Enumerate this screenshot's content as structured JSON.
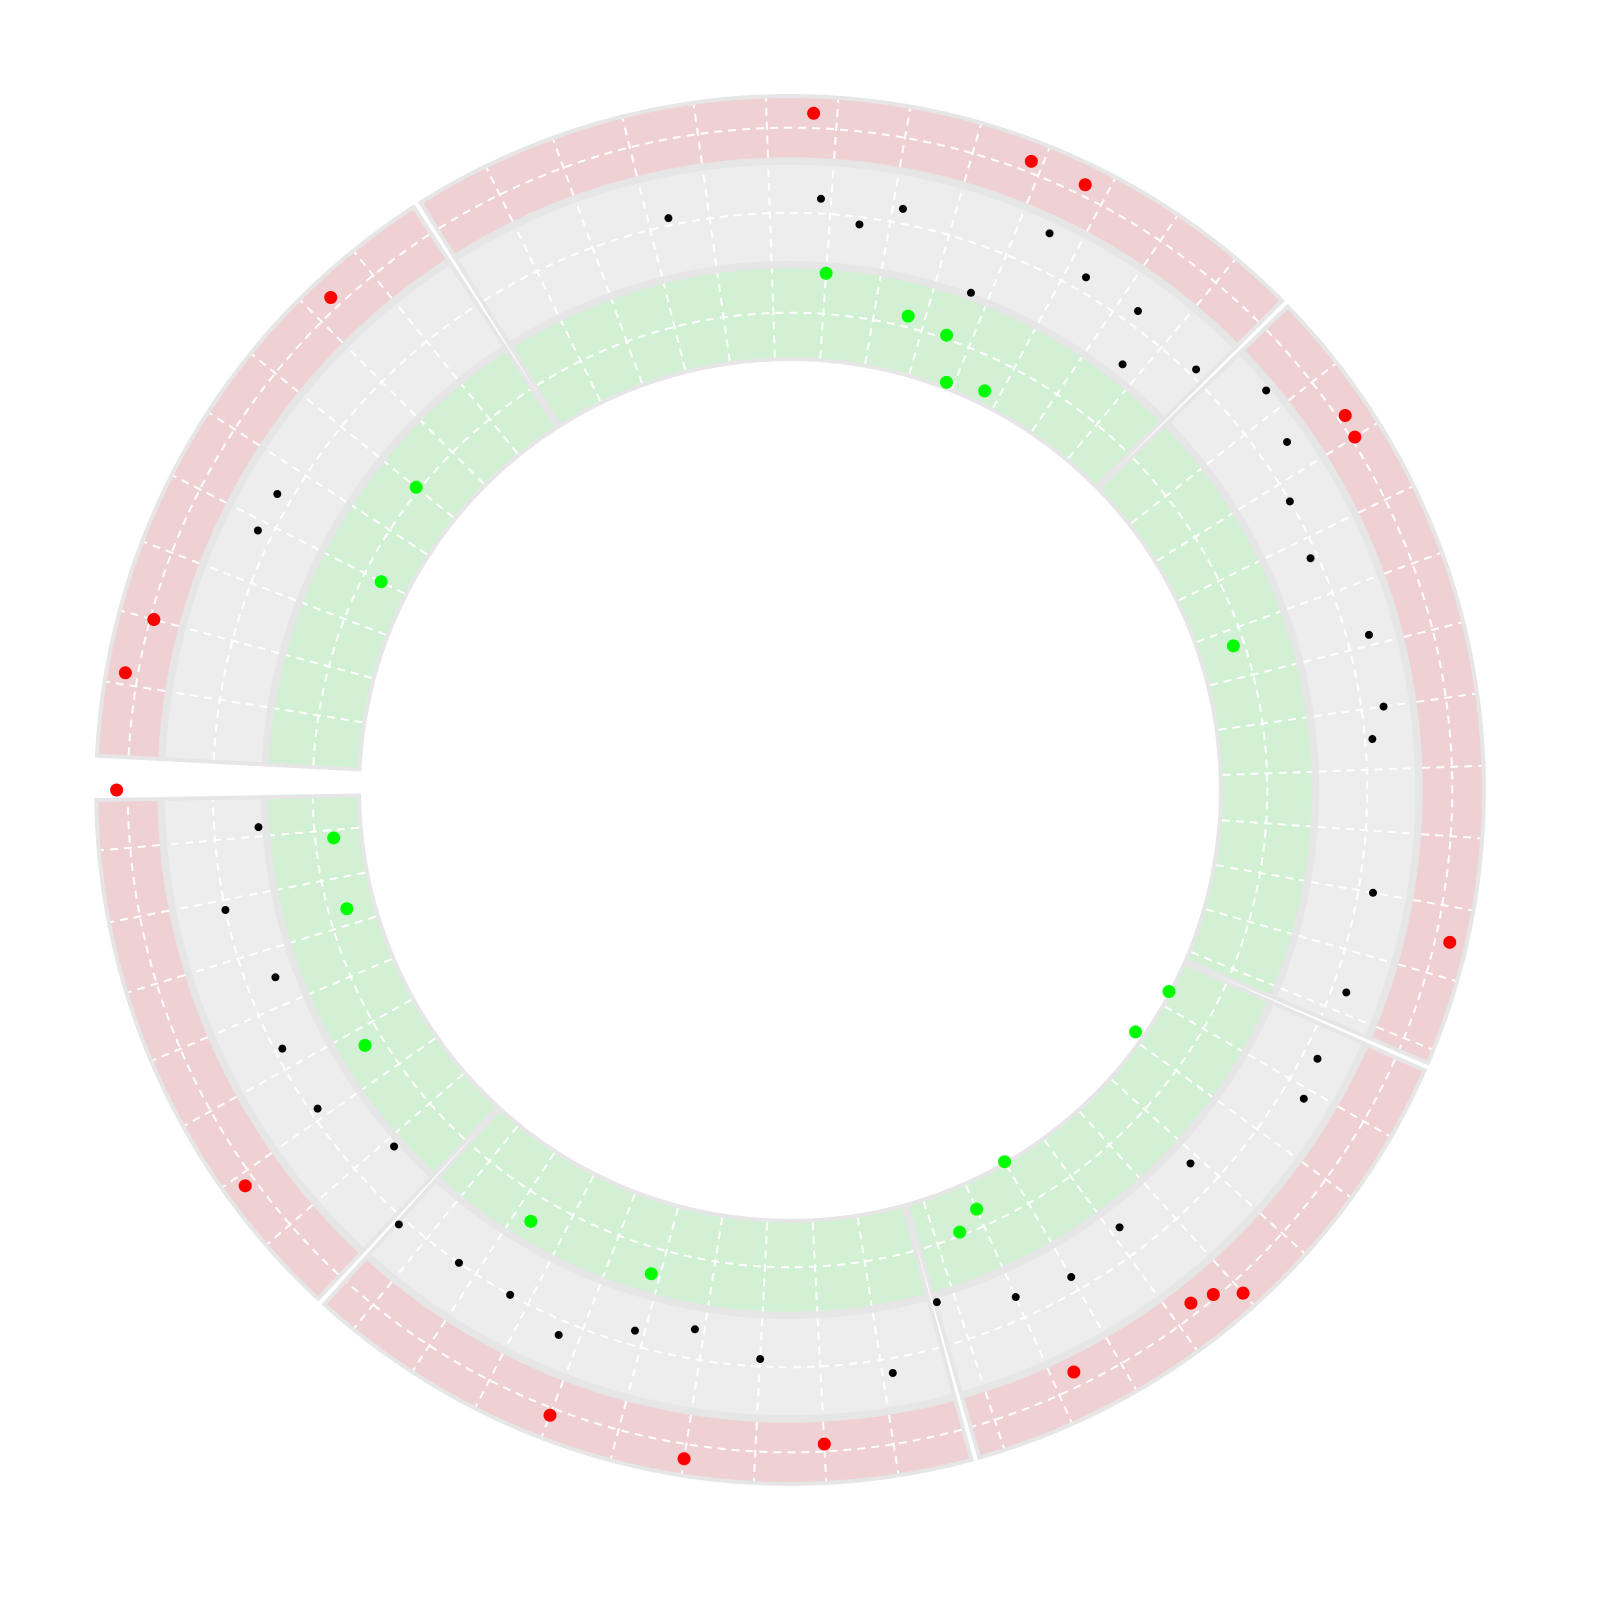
{
  "chart_data": {
    "type": "scatter",
    "layout": "circular",
    "title": "",
    "grid": true,
    "legend": "none",
    "sector_angle_range": [
      -87,
      270
    ],
    "sectors": [
      {
        "start": -87,
        "end": -33
      },
      {
        "start": -32,
        "end": 45
      },
      {
        "start": 46,
        "end": 113
      },
      {
        "start": 114,
        "end": 164
      },
      {
        "start": 165,
        "end": 222
      },
      {
        "start": 223,
        "end": 269
      }
    ],
    "tracks": [
      {
        "name": "outer",
        "band_color": "#efd0d3",
        "point_color": "#ff0000",
        "r_range": [
          0.855,
          0.935
        ],
        "points": [
          {
            "angle": 2,
            "r": 0.915
          },
          {
            "angle": -43,
            "r": 0.91
          },
          {
            "angle": -75,
            "r": 0.89
          },
          {
            "angle": -80,
            "r": 0.912
          },
          {
            "angle": 21,
            "r": 0.91
          },
          {
            "angle": 26,
            "r": 0.91
          },
          {
            "angle": 56,
            "r": 0.905
          },
          {
            "angle": 58,
            "r": 0.9
          },
          {
            "angle": 103,
            "r": 0.915
          },
          {
            "angle": 138,
            "r": 0.915
          },
          {
            "angle": 140,
            "r": 0.89
          },
          {
            "angle": 142,
            "r": 0.88
          },
          {
            "angle": 154,
            "r": 0.875
          },
          {
            "angle": 177,
            "r": 0.885
          },
          {
            "angle": 189,
            "r": 0.915
          },
          {
            "angle": 201,
            "r": 0.905
          },
          {
            "angle": 234,
            "r": 0.91
          },
          {
            "angle": 270,
            "r": 0.91
          }
        ]
      },
      {
        "name": "middle",
        "band_color": "#ededed",
        "point_color": "#000000",
        "r_range": [
          0.715,
          0.845
        ],
        "points": [
          {
            "angle": 3,
            "r": 0.8
          },
          {
            "angle": 7,
            "r": 0.77
          },
          {
            "angle": 11,
            "r": 0.8
          },
          {
            "angle": 20,
            "r": 0.715
          },
          {
            "angle": 25,
            "r": 0.83
          },
          {
            "angle": 30,
            "r": 0.8
          },
          {
            "angle": 36,
            "r": 0.8
          },
          {
            "angle": 38,
            "r": 0.73
          },
          {
            "angle": 44,
            "r": 0.79
          },
          {
            "angle": 50,
            "r": 0.84
          },
          {
            "angle": 55,
            "r": 0.82
          },
          {
            "angle": 60,
            "r": 0.78
          },
          {
            "angle": 66,
            "r": 0.77
          },
          {
            "angle": 75,
            "r": 0.81
          },
          {
            "angle": 82,
            "r": 0.81
          },
          {
            "angle": 85,
            "r": 0.79
          },
          {
            "angle": 100,
            "r": 0.8
          },
          {
            "angle": 110,
            "r": 0.8
          },
          {
            "angle": 117,
            "r": 0.8
          },
          {
            "angle": 121,
            "r": 0.81
          },
          {
            "angle": 133,
            "r": 0.74
          },
          {
            "angle": 143,
            "r": 0.74
          },
          {
            "angle": 150,
            "r": 0.76
          },
          {
            "angle": 156,
            "r": 0.75
          },
          {
            "angle": 164,
            "r": 0.72
          },
          {
            "angle": 170,
            "r": 0.8
          },
          {
            "angle": 183,
            "r": 0.77
          },
          {
            "angle": 190,
            "r": 0.74
          },
          {
            "angle": 196,
            "r": 0.76
          },
          {
            "angle": 203,
            "r": 0.8
          },
          {
            "angle": 209,
            "r": 0.78
          },
          {
            "angle": 215,
            "r": 0.78
          },
          {
            "angle": 222,
            "r": 0.79
          },
          {
            "angle": 228,
            "r": 0.72
          },
          {
            "angle": 236,
            "r": 0.77
          },
          {
            "angle": 243,
            "r": 0.77
          },
          {
            "angle": 250,
            "r": 0.74
          },
          {
            "angle": 258,
            "r": 0.78
          },
          {
            "angle": 266,
            "r": 0.72
          },
          {
            "angle": -12,
            "r": 0.79
          },
          {
            "angle": -60,
            "r": 0.8
          },
          {
            "angle": -64,
            "r": 0.8
          }
        ]
      },
      {
        "name": "inner",
        "band_color": "#d2f0d4",
        "point_color": "#00ff00",
        "r_range": [
          0.585,
          0.705
        ],
        "points": [
          {
            "angle": 4,
            "r": 0.7
          },
          {
            "angle": 14,
            "r": 0.66
          },
          {
            "angle": 19,
            "r": 0.65
          },
          {
            "angle": 21,
            "r": 0.59
          },
          {
            "angle": 26,
            "r": 0.6
          },
          {
            "angle": 72,
            "r": 0.63
          },
          {
            "angle": 118,
            "r": 0.58
          },
          {
            "angle": 125,
            "r": 0.57
          },
          {
            "angle": 150,
            "r": 0.58
          },
          {
            "angle": 156,
            "r": 0.62
          },
          {
            "angle": 159,
            "r": 0.64
          },
          {
            "angle": 196,
            "r": 0.68
          },
          {
            "angle": 211,
            "r": 0.68
          },
          {
            "angle": 239,
            "r": 0.67
          },
          {
            "angle": 255,
            "r": 0.62
          },
          {
            "angle": 264,
            "r": 0.62
          },
          {
            "angle": 297,
            "r": 0.62
          },
          {
            "angle": 309,
            "r": 0.65
          }
        ]
      }
    ]
  }
}
